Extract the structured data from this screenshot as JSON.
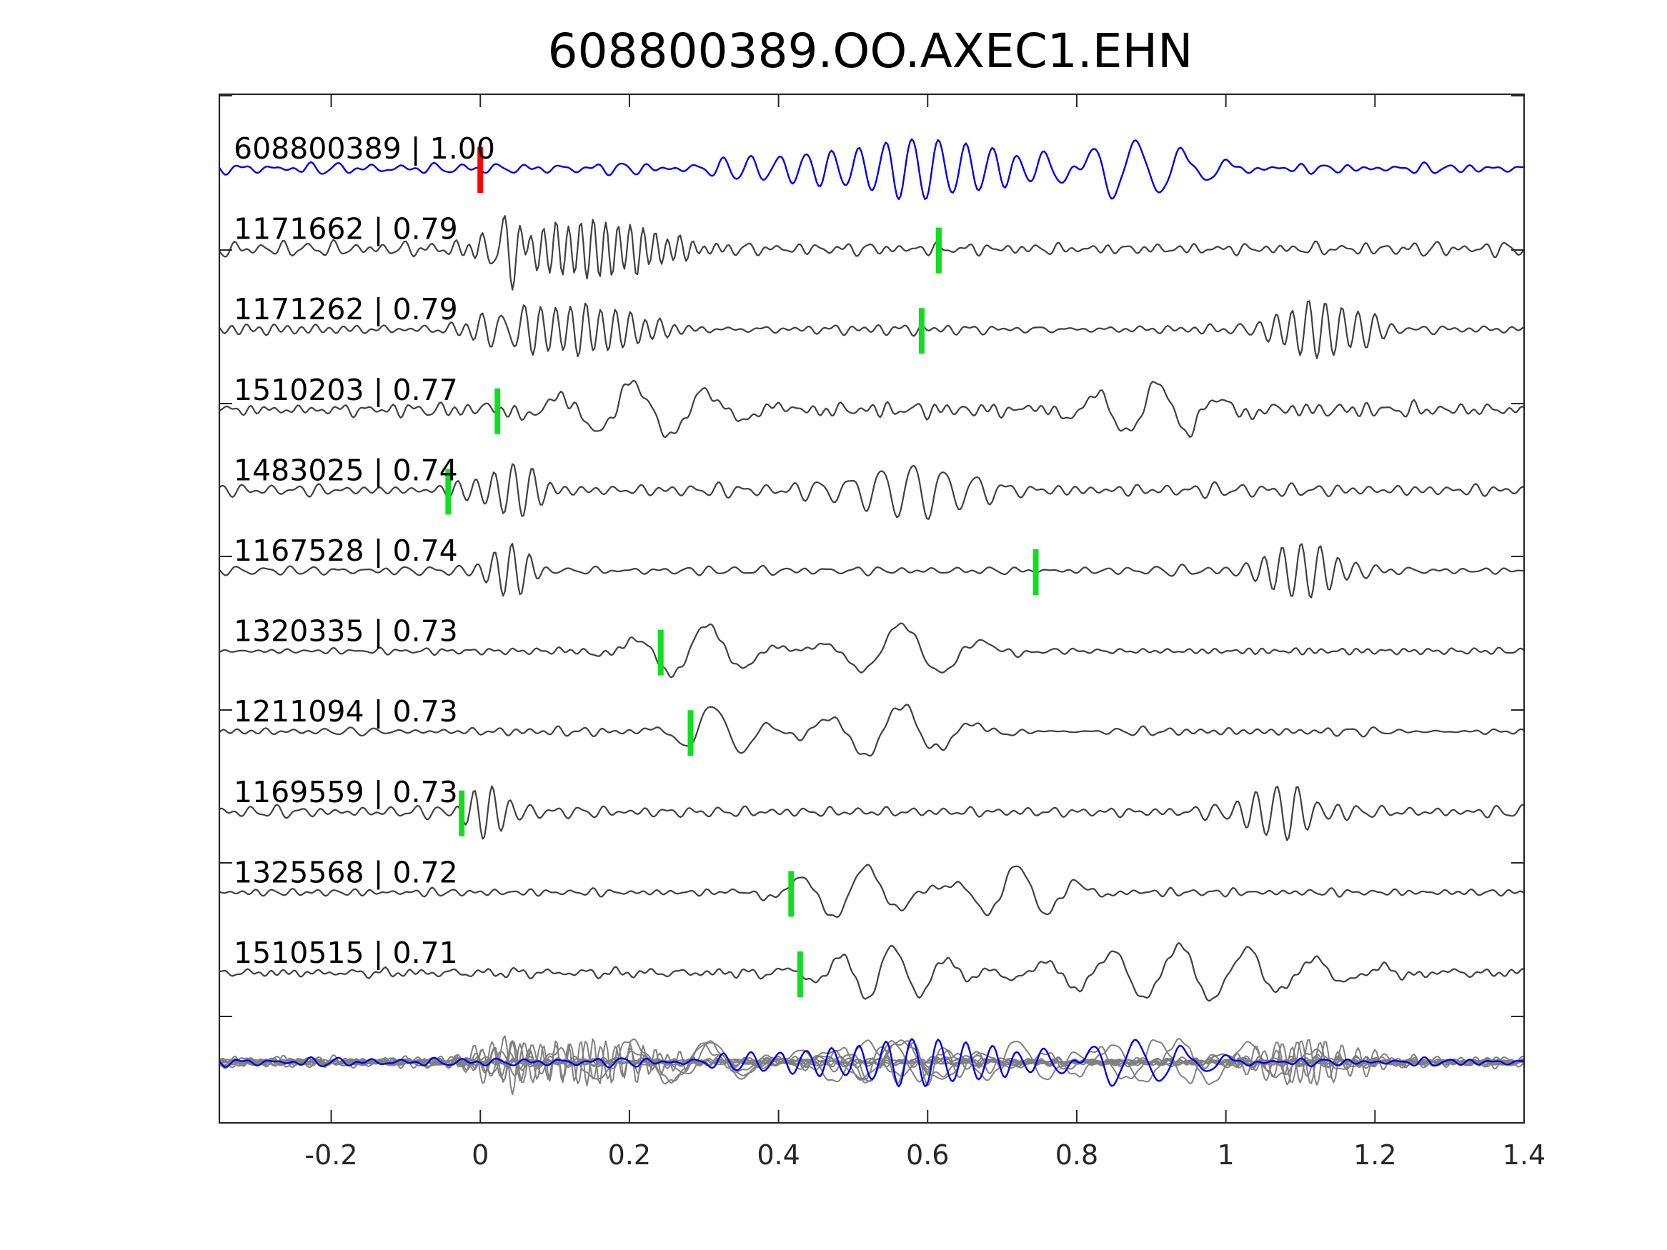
{
  "chart_data": {
    "type": "line",
    "title": "608800389.OO.AXEC1.EHN",
    "xlim": [
      -0.35,
      1.4
    ],
    "x_ticks": [
      -0.2,
      0,
      0.2,
      0.4,
      0.6,
      0.8,
      1,
      1.2,
      1.4
    ],
    "x_tick_labels": [
      "-0.2",
      "0",
      "0.2",
      "0.4",
      "0.6",
      "0.8",
      "1",
      "1.2",
      "1.4"
    ],
    "xlabel": "",
    "ylabel": "",
    "grid": false,
    "legend": false,
    "colors": {
      "reference": "#0000ee",
      "template": "#404040",
      "stack": "#808080",
      "reference_pick": "#ff0000",
      "template_pick": "#11dd22",
      "axes": "#262626"
    },
    "series": [
      {
        "label": "608800389 | 1.00",
        "pick_time": 0.0,
        "pick_type": "reference",
        "bursts": [
          [
            0.57,
            0.2,
            28,
            0.0
          ],
          [
            0.88,
            0.1,
            16,
            0.5
          ]
        ],
        "noise": 0.08,
        "seed": 11
      },
      {
        "label": "1171662 | 0.79",
        "pick_time": 0.615,
        "pick_type": "template",
        "bursts": [
          [
            0.03,
            0.03,
            38,
            0.5
          ],
          [
            0.15,
            0.12,
            60,
            0.3
          ]
        ],
        "noise": 0.1,
        "seed": 23
      },
      {
        "label": "1171262 | 0.79",
        "pick_time": 0.592,
        "pick_type": "template",
        "bursts": [
          [
            0.03,
            0.03,
            38,
            0.5
          ],
          [
            0.12,
            0.1,
            50,
            0.4
          ],
          [
            1.13,
            0.08,
            45,
            0.2
          ]
        ],
        "noise": 0.09,
        "seed": 37
      },
      {
        "label": "1510203 | 0.77",
        "pick_time": 0.023,
        "pick_type": "template",
        "bursts": [
          [
            0.22,
            0.13,
            10,
            0.8
          ],
          [
            0.9,
            0.1,
            12,
            0.3
          ]
        ],
        "noise": 0.09,
        "seed": 41
      },
      {
        "label": "1483025 | 0.74",
        "pick_time": -0.043,
        "pick_type": "template",
        "bursts": [
          [
            0.04,
            0.05,
            40,
            0.2
          ],
          [
            0.58,
            0.1,
            24,
            0.5
          ]
        ],
        "noise": 0.11,
        "seed": 53
      },
      {
        "label": "1167528 | 0.74",
        "pick_time": 0.745,
        "pick_type": "template",
        "bursts": [
          [
            0.04,
            0.04,
            42,
            0.3
          ],
          [
            1.1,
            0.07,
            40,
            0.4
          ]
        ],
        "noise": 0.06,
        "seed": 67
      },
      {
        "label": "1320335 | 0.73",
        "pick_time": 0.242,
        "pick_type": "template",
        "bursts": [
          [
            0.29,
            0.09,
            10,
            0.2
          ],
          [
            0.57,
            0.1,
            9,
            0.6
          ]
        ],
        "noise": 0.05,
        "seed": 71
      },
      {
        "label": "1211094 | 0.73",
        "pick_time": 0.282,
        "pick_type": "template",
        "bursts": [
          [
            0.32,
            0.06,
            12,
            0.7
          ],
          [
            0.55,
            0.1,
            10,
            0.2
          ]
        ],
        "noise": 0.05,
        "seed": 83
      },
      {
        "label": "1169559 | 0.73",
        "pick_time": -0.025,
        "pick_type": "template",
        "bursts": [
          [
            0.01,
            0.04,
            40,
            0.0
          ],
          [
            1.07,
            0.06,
            36,
            0.6
          ]
        ],
        "noise": 0.09,
        "seed": 97
      },
      {
        "label": "1325568 | 0.72",
        "pick_time": 0.417,
        "pick_type": "template",
        "bursts": [
          [
            0.5,
            0.09,
            11,
            0.1
          ],
          [
            0.72,
            0.08,
            12,
            0.5
          ]
        ],
        "noise": 0.05,
        "seed": 101
      },
      {
        "label": "1510515 | 0.71",
        "pick_time": 0.429,
        "pick_type": "template",
        "bursts": [
          [
            0.55,
            0.1,
            14,
            0.4
          ],
          [
            0.95,
            0.2,
            11,
            0.8
          ]
        ],
        "noise": 0.07,
        "seed": 113
      }
    ]
  }
}
